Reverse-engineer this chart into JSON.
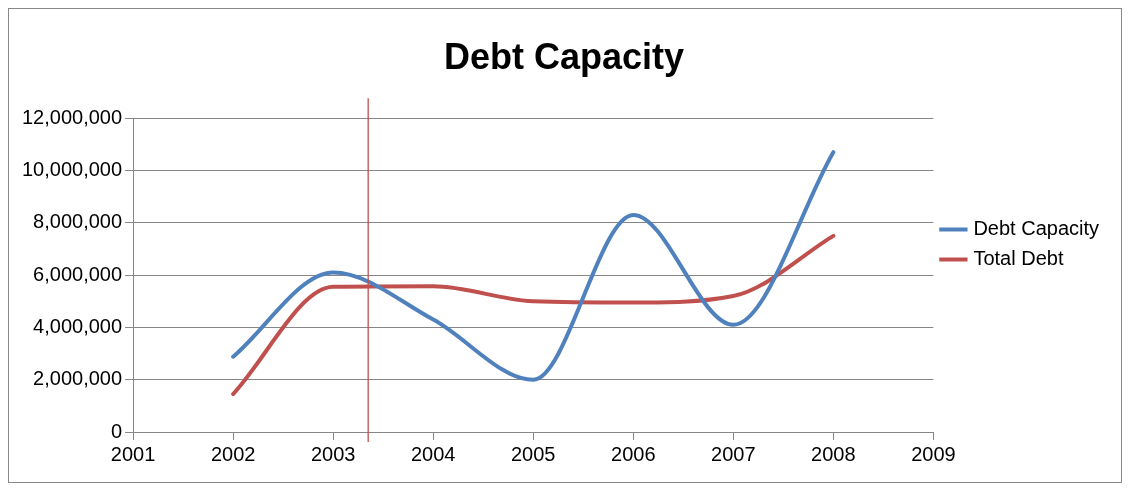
{
  "chart_data": {
    "type": "line",
    "title": "Debt Capacity",
    "x": [
      2002,
      2003,
      2004,
      2005,
      2006,
      2007,
      2008
    ],
    "series": [
      {
        "name": "Debt Capacity",
        "color": "#4f81bd",
        "values": [
          2880000,
          6100000,
          4300000,
          2000000,
          8300000,
          4100000,
          10700000
        ]
      },
      {
        "name": "Total Debt",
        "color": "#c0504d",
        "values": [
          1450000,
          5550000,
          5570000,
          5000000,
          4950000,
          5200000,
          7500000
        ]
      }
    ],
    "xlim": [
      2001,
      2009
    ],
    "xticks": [
      2001,
      2002,
      2003,
      2004,
      2005,
      2006,
      2007,
      2008,
      2009
    ],
    "ylim": [
      0,
      12000000
    ],
    "yticks": [
      0,
      {
        "value": 2000000,
        "label": "2,000,000"
      },
      {
        "value": 4000000,
        "label": "4,000,000"
      },
      {
        "value": 6000000,
        "label": "6,000,000"
      },
      {
        "value": 8000000,
        "label": "8,000,000"
      },
      {
        "value": 10000000,
        "label": "10,000,000"
      },
      {
        "value": 12000000,
        "label": "12,000,000"
      }
    ],
    "grid": "y",
    "legend": "right",
    "marker": "none",
    "line_style": "solid",
    "ref_lines": [
      {
        "axis": "x",
        "value": 2003.35,
        "color": "#c0504d"
      }
    ]
  }
}
